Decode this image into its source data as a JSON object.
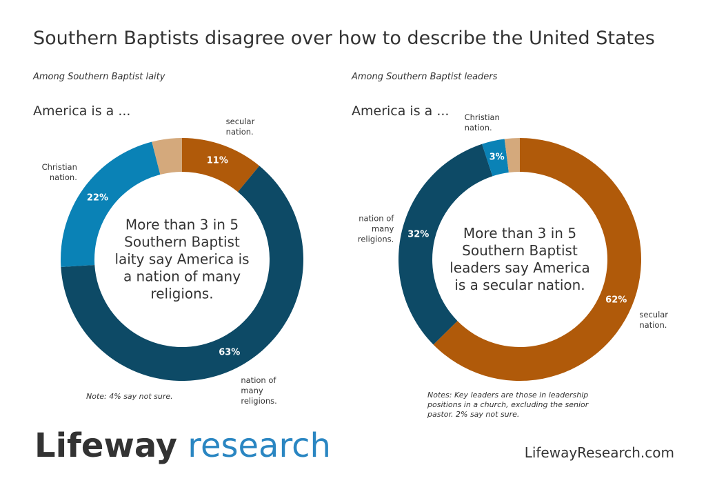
{
  "title": "Southern Baptists disagree over how to describe the United States",
  "chart_data": [
    {
      "type": "donut",
      "subtitle": "Among Southern Baptist laity",
      "heading": "America is a ...",
      "center_text": "More than 3 in 5 Southern Baptist laity say America is a nation of many religions.",
      "categories": [
        "secular nation.",
        "nation of many religions.",
        "Christian nation.",
        null
      ],
      "values": [
        11,
        63,
        22,
        4
      ],
      "value_labels": [
        "11%",
        "63%",
        "22%",
        null
      ],
      "colors": [
        "#b05a0a",
        "#0d4a66",
        "#0a82b6",
        "#d4a97c"
      ],
      "note": "Note: 4% say not sure."
    },
    {
      "type": "donut",
      "subtitle": "Among Southern Baptist leaders",
      "heading": "America is a ...",
      "center_text": "More than 3 in 5 Southern Baptist leaders say America is a secular nation.",
      "categories": [
        "secular nation.",
        "nation of many religions.",
        "Christian nation.",
        null
      ],
      "values": [
        62,
        32,
        3,
        2
      ],
      "value_labels": [
        "62%",
        "32%",
        "3%",
        null
      ],
      "colors": [
        "#b05a0a",
        "#0d4a66",
        "#0a82b6",
        "#d4a97c"
      ],
      "note": "Notes: Key leaders are those in leadership positions in a church, excluding the senior pastor. 2% say not sure."
    }
  ],
  "brand": {
    "name": "Lifeway",
    "tagline": "research"
  },
  "url": "LifewayResearch.com"
}
